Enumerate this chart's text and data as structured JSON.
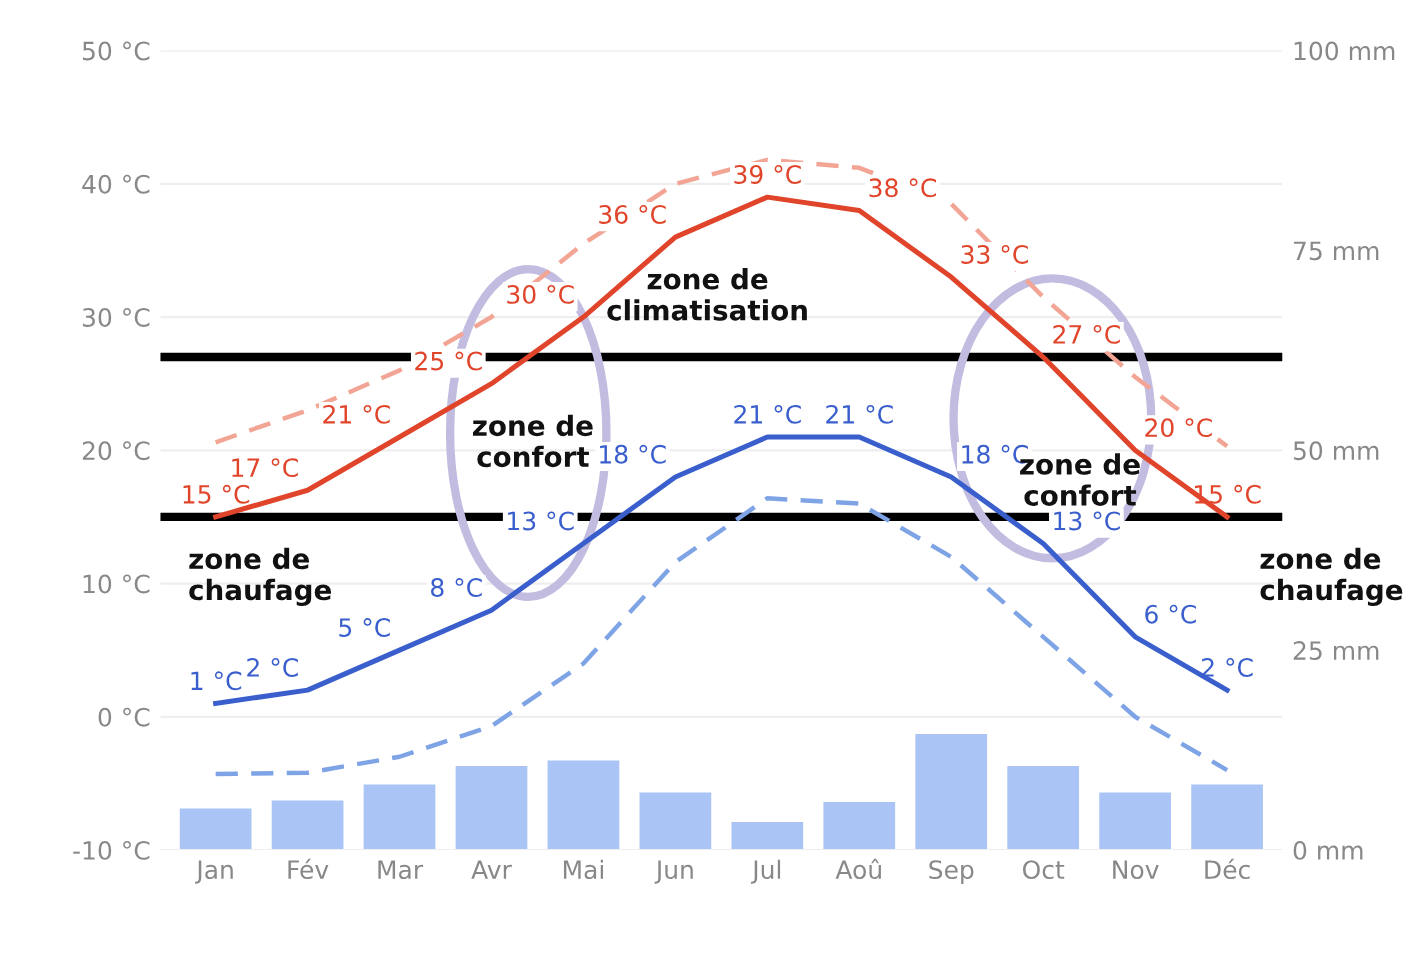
{
  "chart_data": {
    "type": "line",
    "categories": [
      "Jan",
      "Fév",
      "Mar",
      "Avr",
      "Mai",
      "Jun",
      "Jul",
      "Aoû",
      "Sep",
      "Oct",
      "Nov",
      "Déc"
    ],
    "series": [
      {
        "type": "bar",
        "axis": "y2",
        "color": "#a9c4f5",
        "values": [
          5.2,
          6.2,
          8.2,
          10.5,
          11.2,
          7.2,
          3.5,
          6,
          14.5,
          10.5,
          7.2,
          8.2
        ]
      },
      {
        "line_style": "dashed",
        "color": "#f2a594",
        "values": [
          20.6,
          23,
          26,
          30,
          35.5,
          40,
          41.8,
          41.2,
          38.5,
          31.5,
          25.5,
          20.3
        ]
      },
      {
        "line_style": "dashed",
        "color": "#7ea4e6",
        "values": [
          -4.3,
          -4.2,
          -3,
          -0.7,
          4,
          11.6,
          16.4,
          16,
          12,
          6,
          0,
          -4
        ]
      },
      {
        "line_style": "solid",
        "color": "#e0442a",
        "values": [
          15,
          17,
          21,
          25,
          30,
          36,
          39,
          38,
          33,
          27,
          20,
          15
        ],
        "value_labels": [
          "15 °C",
          "17 °C",
          "21 °C",
          "25 °C",
          "30 °C",
          "36 °C",
          "39 °C",
          "38 °C",
          "33 °C",
          "27 °C",
          "20 °C",
          "15 °C"
        ]
      },
      {
        "line_style": "solid",
        "color": "#3a5fcd",
        "values": [
          1,
          2,
          5,
          8,
          13,
          18,
          21,
          21,
          18,
          13,
          6,
          2
        ],
        "value_labels": [
          "1 °C",
          "2 °C",
          "5 °C",
          "8 °C",
          "13 °C",
          "18 °C",
          "21 °C",
          "21 °C",
          "18 °C",
          "13 °C",
          "6 °C",
          "2 °C"
        ]
      }
    ],
    "ylim": [
      -10,
      50
    ],
    "yticks": [
      {
        "value": -10,
        "label": "-10 °C"
      },
      {
        "value": 0,
        "label": "0 °C"
      },
      {
        "value": 10,
        "label": "10 °C"
      },
      {
        "value": 20,
        "label": "20 °C"
      },
      {
        "value": 30,
        "label": "30 °C"
      },
      {
        "value": 40,
        "label": "40 °C"
      },
      {
        "value": 50,
        "label": "50 °C"
      }
    ],
    "y2lim": [
      0,
      100
    ],
    "y2ticks": [
      {
        "value": 0,
        "label": "0 mm"
      },
      {
        "value": 25,
        "label": "25 mm"
      },
      {
        "value": 50,
        "label": "50 mm"
      },
      {
        "value": 75,
        "label": "75 mm"
      },
      {
        "value": 100,
        "label": "100 mm"
      }
    ],
    "ref_lines": [
      {
        "axis": "y",
        "value": 27,
        "color": "#000000"
      },
      {
        "axis": "y",
        "value": 15,
        "color": "#000000"
      }
    ],
    "annotations": [
      "zone de\nclimatisation",
      "zone de\nconfort",
      "zone de\nconfort",
      "zone de\nchaufage",
      "zone de\nchaufage"
    ],
    "grid": "y",
    "legend": false,
    "marker": "none"
  }
}
